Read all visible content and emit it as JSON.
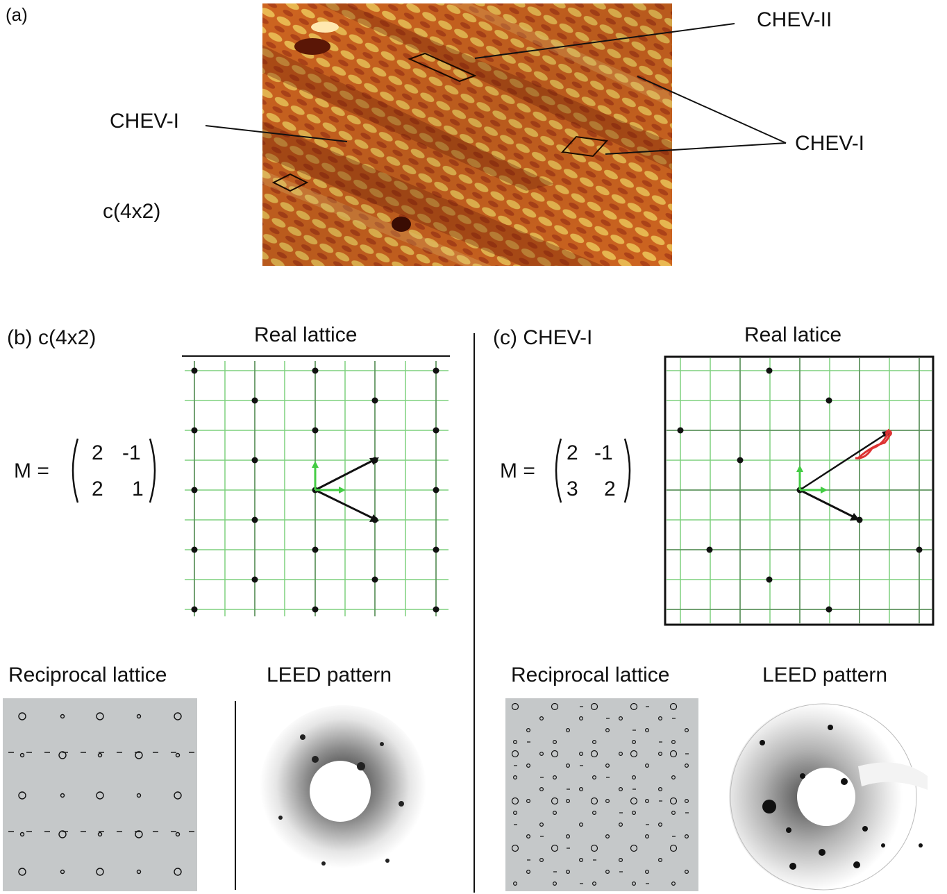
{
  "panel_a": {
    "label": "(a)",
    "annotations": {
      "chev_ii": "CHEV-II",
      "chev_i_left": "CHEV-I",
      "chev_i_right": "CHEV-I",
      "c4x2": "c(4x2)"
    },
    "colors": {
      "stm_bright": "#f6c35a",
      "stm_mid": "#e0782a",
      "stm_dark": "#8a2a10"
    }
  },
  "panel_b": {
    "label": "(b) c(4x2)",
    "real_lattice_title": "Real lattice",
    "matrix_prefix": "M =",
    "matrix": [
      [
        "2",
        "-1"
      ],
      [
        "2",
        "1"
      ]
    ],
    "reciprocal_title": "Reciprocal lattice",
    "leed_title": "LEED pattern"
  },
  "panel_c": {
    "label": "(c) CHEV-I",
    "real_lattice_title": "Real latice",
    "matrix_prefix": "M =",
    "matrix": [
      [
        "2",
        "-1"
      ],
      [
        "3",
        "2"
      ]
    ],
    "reciprocal_title": "Reciprocal lattice",
    "leed_title": "LEED pattern"
  },
  "colors": {
    "grid_green": "#7fd07f",
    "vector_green": "#44cc44",
    "vector_black": "#111111",
    "highlight_red": "#dd3333",
    "recip_bg": "#c5c8c9"
  }
}
